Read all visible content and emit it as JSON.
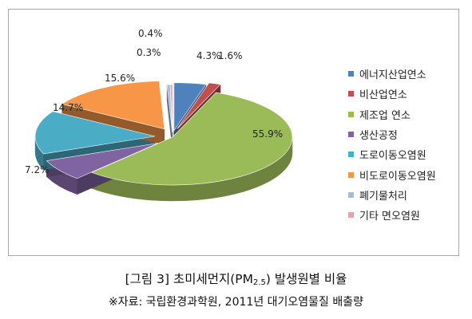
{
  "chart_data": {
    "type": "pie",
    "categories": [
      "에너지산업연소",
      "비산업연소",
      "제조업 연소",
      "생산공정",
      "도로이동오염원",
      "비도로이동오염원",
      "폐기물처리",
      "기타 면오염원"
    ],
    "values": [
      4.3,
      1.6,
      55.9,
      7.2,
      14.7,
      15.6,
      0.4,
      0.3
    ],
    "value_labels": [
      "4.3%",
      "1.6%",
      "55.9%",
      "7.2%",
      "14.7%",
      "15.6%",
      "0.4%",
      "0.3%"
    ],
    "colors": [
      "#4f81bd",
      "#c0504d",
      "#9bbb59",
      "#8064a2",
      "#4bacc6",
      "#f79646",
      "#a6bbd8",
      "#e1a5a3"
    ],
    "legend": "right",
    "title": "",
    "xlabel": "",
    "ylabel": ""
  },
  "caption": {
    "prefix": "[그림 3] 초미세먼지(PM",
    "subscript": "2.5",
    "suffix": ") 발생원별 비율"
  },
  "source": "※자료: 국립환경과학원, 2011년 대기오염물질 배출량"
}
